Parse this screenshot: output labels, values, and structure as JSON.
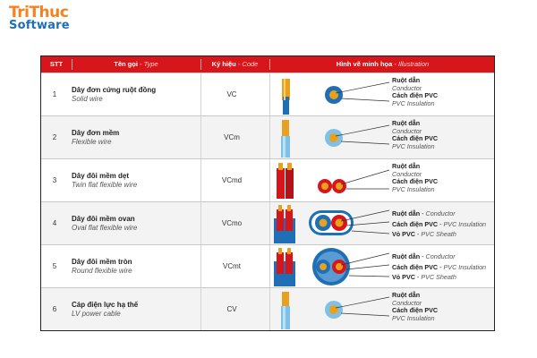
{
  "logo": {
    "line1": "TriThuc",
    "line2": "Software"
  },
  "header": {
    "stt": "STT",
    "name_vn": "Tên gọi",
    "name_en": "Type",
    "code_vn": "Ký hiệu",
    "code_en": "Code",
    "illus_vn": "Hình vẽ minh họa",
    "illus_en": "Illustration",
    "sep": "-"
  },
  "rows": [
    {
      "num": "1",
      "name_vn": "Dây đơn cứng ruột đồng",
      "name_en": "Solid wire",
      "code": "VC",
      "l1_vn": "Ruột dẫn",
      "l1_en": "Conductor",
      "l2_vn": "Cách điện PVC",
      "l2_en": "PVC Insulation"
    },
    {
      "num": "2",
      "name_vn": "Dây đơn mềm",
      "name_en": "Flexible wire",
      "code": "VCm",
      "l1_vn": "Ruột dẫn",
      "l1_en": "Conductor",
      "l2_vn": "Cách điện PVC",
      "l2_en": "PVC Insulation"
    },
    {
      "num": "3",
      "name_vn": "Dây đôi mềm dẹt",
      "name_en": "Twin flat flexible wire",
      "code": "VCmd",
      "l1_vn": "Ruột dẫn",
      "l1_en": "Conductor",
      "l2_vn": "Cách điện PVC",
      "l2_en": "PVC Insulation"
    },
    {
      "num": "4",
      "name_vn": "Dây đôi mềm ovan",
      "name_en": "Oval flat flexible wire",
      "code": "VCmo",
      "l1_vn": "Ruột dẫn",
      "l1_en": "Conductor",
      "l2_vn": "Cách điện PVC",
      "l2_en": "PVC Insulation",
      "l3_vn": "Vỏ PVC",
      "l3_en": "PVC Sheath"
    },
    {
      "num": "5",
      "name_vn": "Dây đôi mềm tròn",
      "name_en": "Round flexible wire",
      "code": "VCmt",
      "l1_vn": "Ruột dẫn",
      "l1_en": "Conductor",
      "l2_vn": "Cách điện PVC",
      "l2_en": "PVC Insulation",
      "l3_vn": "Vỏ PVC",
      "l3_en": "PVC Sheath"
    },
    {
      "num": "6",
      "name_vn": "Cáp điện lực hạ thế",
      "name_en": "LV power cable",
      "code": "CV",
      "l1_vn": "Ruột dẫn",
      "l1_en": "Conductor",
      "l2_vn": "Cách điện PVC",
      "l2_en": "PVC Insulation"
    }
  ],
  "colors": {
    "header_red": "#d7161c",
    "logo_orange": "#f58220",
    "logo_blue": "#1f6fb6",
    "insulation_blue": "#1f6fb6",
    "insulation_red": "#d7161c",
    "copper": "#e8a11f"
  }
}
